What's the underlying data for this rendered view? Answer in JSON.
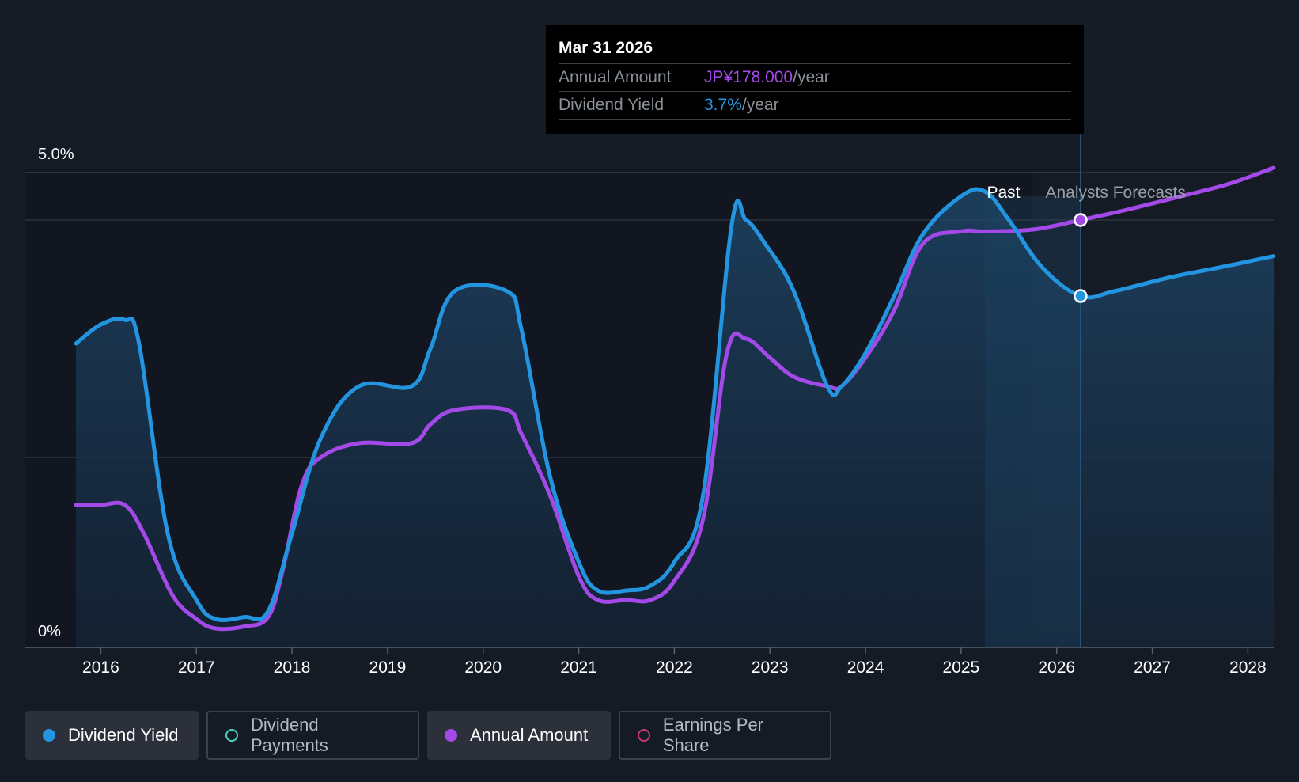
{
  "tooltip": {
    "date": "Mar 31 2026",
    "annual_amount_label": "Annual Amount",
    "annual_amount_value": "JP¥178.000",
    "annual_amount_unit": "/year",
    "dividend_yield_label": "Dividend Yield",
    "dividend_yield_value": "3.7%",
    "dividend_yield_unit": "/year"
  },
  "legend": [
    {
      "label": "Dividend Yield",
      "color": "#2394e0",
      "active": true,
      "filled": true
    },
    {
      "label": "Dividend Payments",
      "color": "#4fd1c5",
      "active": false,
      "filled": false
    },
    {
      "label": "Annual Amount",
      "color": "#a349e8",
      "active": true,
      "filled": true
    },
    {
      "label": "Earnings Per Share",
      "color": "#c7387a",
      "active": false,
      "filled": false
    }
  ],
  "colors": {
    "background": "#151b25",
    "dividend_yield": "#2394e0",
    "annual_amount": "#a349e8"
  },
  "chart_data": {
    "type": "line",
    "ylabel_ticks": [
      "0%",
      "5.0%"
    ],
    "ylim": [
      0,
      5.0
    ],
    "xlim": [
      2015.74,
      2028.27
    ],
    "x_ticks": [
      "2016",
      "2017",
      "2018",
      "2019",
      "2020",
      "2021",
      "2022",
      "2023",
      "2024",
      "2025",
      "2026",
      "2027",
      "2028"
    ],
    "period_labels": {
      "past": "Past",
      "forecast": "Analysts Forecasts"
    },
    "forecast_start": 2025.75,
    "highlight_x": 2026.25,
    "series": [
      {
        "name": "Dividend Yield",
        "unit": "%",
        "points": [
          [
            2015.74,
            3.2
          ],
          [
            2016.0,
            3.4
          ],
          [
            2016.25,
            3.45
          ],
          [
            2016.4,
            3.2
          ],
          [
            2016.7,
            1.2
          ],
          [
            2017.0,
            0.5
          ],
          [
            2017.2,
            0.3
          ],
          [
            2017.5,
            0.32
          ],
          [
            2017.75,
            0.38
          ],
          [
            2018.0,
            1.2
          ],
          [
            2018.3,
            2.2
          ],
          [
            2018.7,
            2.75
          ],
          [
            2019.25,
            2.75
          ],
          [
            2019.45,
            3.15
          ],
          [
            2019.7,
            3.75
          ],
          [
            2020.25,
            3.75
          ],
          [
            2020.4,
            3.35
          ],
          [
            2020.7,
            1.8
          ],
          [
            2021.0,
            0.9
          ],
          [
            2021.2,
            0.6
          ],
          [
            2021.5,
            0.6
          ],
          [
            2021.75,
            0.65
          ],
          [
            2022.0,
            0.9
          ],
          [
            2022.3,
            1.6
          ],
          [
            2022.6,
            4.45
          ],
          [
            2022.75,
            4.5
          ],
          [
            2022.95,
            4.25
          ],
          [
            2023.25,
            3.75
          ],
          [
            2023.6,
            2.75
          ],
          [
            2023.75,
            2.75
          ],
          [
            2024.0,
            3.1
          ],
          [
            2024.3,
            3.7
          ],
          [
            2024.6,
            4.35
          ],
          [
            2025.0,
            4.75
          ],
          [
            2025.25,
            4.8
          ],
          [
            2025.5,
            4.5
          ],
          [
            2025.85,
            4.0
          ],
          [
            2026.25,
            3.7
          ],
          [
            2026.6,
            3.75
          ],
          [
            2027.2,
            3.9
          ],
          [
            2027.7,
            4.0
          ],
          [
            2028.27,
            4.12
          ]
        ]
      },
      {
        "name": "Annual Amount",
        "unit": "%",
        "points": [
          [
            2015.74,
            1.5
          ],
          [
            2016.0,
            1.5
          ],
          [
            2016.25,
            1.5
          ],
          [
            2016.45,
            1.2
          ],
          [
            2016.75,
            0.55
          ],
          [
            2017.0,
            0.3
          ],
          [
            2017.2,
            0.2
          ],
          [
            2017.5,
            0.22
          ],
          [
            2017.75,
            0.32
          ],
          [
            2017.9,
            0.8
          ],
          [
            2018.1,
            1.7
          ],
          [
            2018.3,
            2.0
          ],
          [
            2018.7,
            2.15
          ],
          [
            2019.25,
            2.15
          ],
          [
            2019.45,
            2.35
          ],
          [
            2019.7,
            2.5
          ],
          [
            2020.25,
            2.5
          ],
          [
            2020.4,
            2.25
          ],
          [
            2020.7,
            1.6
          ],
          [
            2021.0,
            0.75
          ],
          [
            2021.2,
            0.5
          ],
          [
            2021.5,
            0.5
          ],
          [
            2021.75,
            0.5
          ],
          [
            2022.0,
            0.7
          ],
          [
            2022.3,
            1.35
          ],
          [
            2022.55,
            3.1
          ],
          [
            2022.75,
            3.25
          ],
          [
            2023.0,
            3.05
          ],
          [
            2023.25,
            2.85
          ],
          [
            2023.6,
            2.75
          ],
          [
            2023.75,
            2.75
          ],
          [
            2024.0,
            3.05
          ],
          [
            2024.3,
            3.55
          ],
          [
            2024.6,
            4.25
          ],
          [
            2025.0,
            4.38
          ],
          [
            2025.25,
            4.38
          ],
          [
            2025.75,
            4.4
          ],
          [
            2026.25,
            4.5
          ],
          [
            2026.7,
            4.6
          ],
          [
            2027.3,
            4.75
          ],
          [
            2027.8,
            4.88
          ],
          [
            2028.27,
            5.05
          ]
        ]
      }
    ],
    "highlight_points": [
      {
        "series": "Annual Amount",
        "x": 2026.25,
        "y": 4.5
      },
      {
        "series": "Dividend Yield",
        "x": 2026.25,
        "y": 3.7
      }
    ]
  }
}
